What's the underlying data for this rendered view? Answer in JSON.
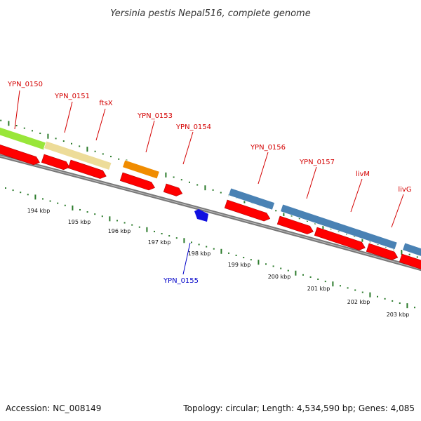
{
  "title": "Yersinia pestis Nepal516, complete genome",
  "footer": {
    "accession": "Accession: NC_008149",
    "topology": "Topology: circular; Length: 4,534,590 bp; Genes: 4,085"
  },
  "colors": {
    "label_forward": "#d40000",
    "label_reverse": "#0000c8",
    "cds": "#ff0000",
    "backbone": "#777777",
    "tick": "#2a7a2a"
  },
  "gene_labels": [
    {
      "name": "YPN_0150",
      "strand": "forward"
    },
    {
      "name": "YPN_0151",
      "strand": "forward"
    },
    {
      "name": "ftsX",
      "strand": "forward"
    },
    {
      "name": "YPN_0153",
      "strand": "forward"
    },
    {
      "name": "YPN_0154",
      "strand": "forward"
    },
    {
      "name": "YPN_0156",
      "strand": "forward"
    },
    {
      "name": "YPN_0157",
      "strand": "forward"
    },
    {
      "name": "livM",
      "strand": "forward"
    },
    {
      "name": "livG",
      "strand": "forward"
    },
    {
      "name": "YPN_0155",
      "strand": "reverse"
    }
  ],
  "kbp_labels": [
    "194 kbp",
    "195 kbp",
    "196 kbp",
    "197 kbp",
    "198 kbp",
    "199 kbp",
    "200 kbp",
    "201 kbp",
    "202 kbp",
    "203 kbp"
  ],
  "feature_colors": {
    "lime": "#99e63a",
    "khaki": "#eddc99",
    "orange": "#f08c00",
    "steelblue": "#4a82b4",
    "reverse": "#1010e0"
  }
}
